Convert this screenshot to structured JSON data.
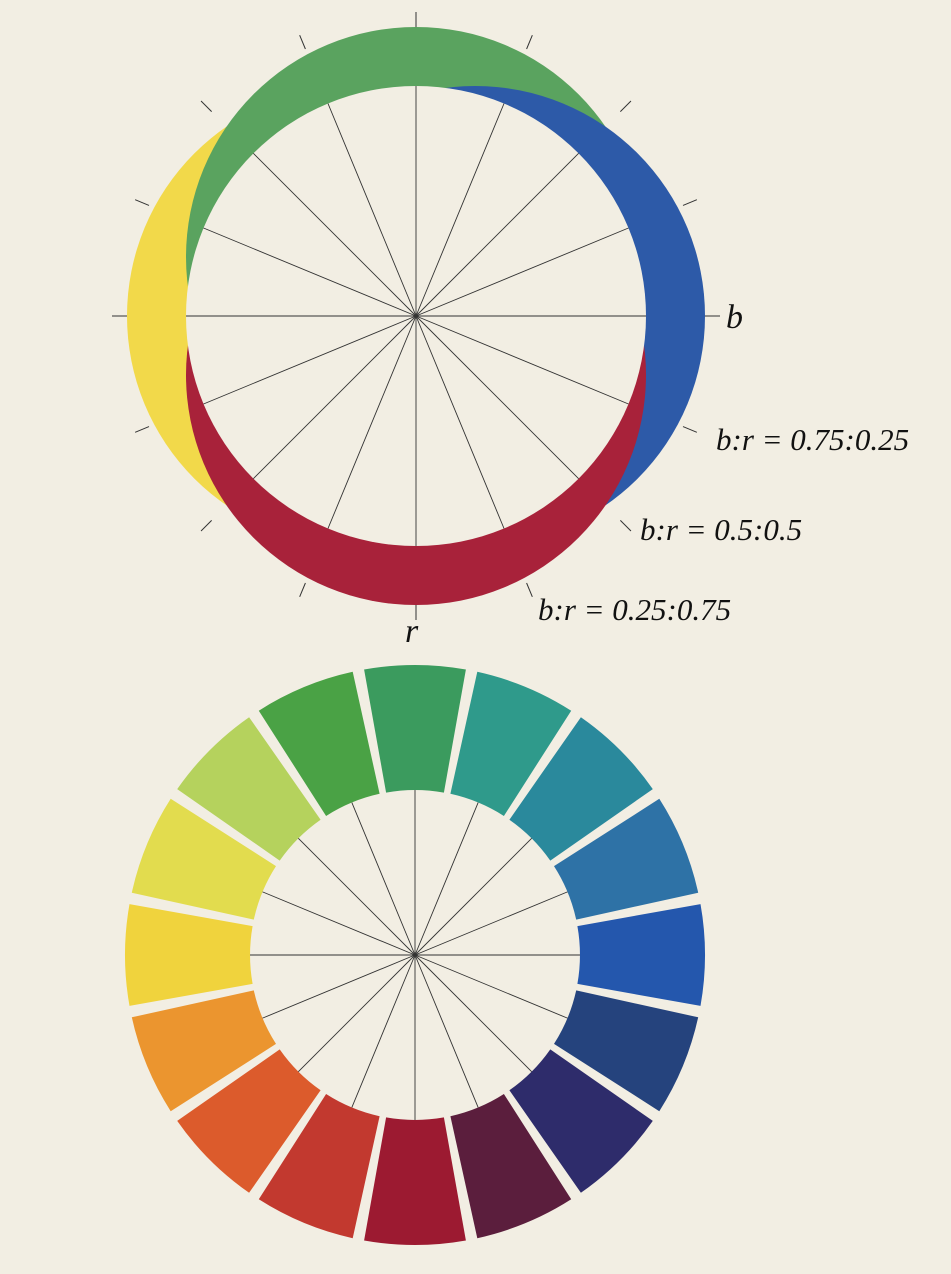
{
  "axis_labels": {
    "b": "b",
    "r": "r"
  },
  "ratios": [
    "b:r = 0.75:0.25",
    "b:r = 0.5:0.5",
    "b:r = 0.25:0.75"
  ]
}
